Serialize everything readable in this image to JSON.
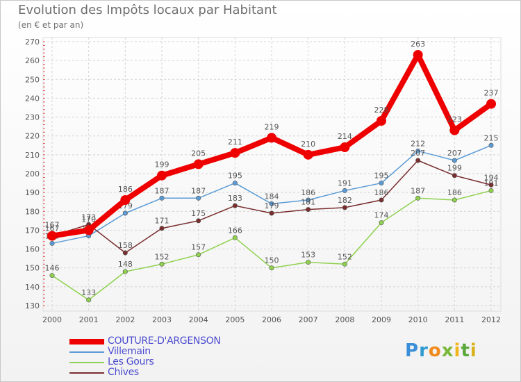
{
  "title": "Evolution des Impôts locaux par Habitant",
  "subtitle": "(en € et par an)",
  "logo_text": "Proxiti",
  "chart_data": {
    "type": "line",
    "title": "Evolution des Impôts locaux par Habitant",
    "ylabel": "(en € et par an)",
    "xlabel": "",
    "x": [
      2000,
      2001,
      2002,
      2003,
      2004,
      2005,
      2006,
      2007,
      2008,
      2009,
      2010,
      2011,
      2012
    ],
    "ylim": [
      130,
      270
    ],
    "yticks": [
      130,
      140,
      150,
      160,
      170,
      180,
      190,
      200,
      210,
      220,
      230,
      240,
      250,
      260,
      270
    ],
    "grid": true,
    "legend_position": "bottom-left",
    "series": [
      {
        "name": "Villemain",
        "color": "#5b9bd5",
        "values": [
          163,
          167,
          179,
          187,
          187,
          195,
          184,
          186,
          191,
          195,
          212,
          207,
          215
        ]
      },
      {
        "name": "Les Gours",
        "color": "#8fd14f",
        "values": [
          146,
          133,
          148,
          152,
          157,
          166,
          150,
          153,
          152,
          174,
          187,
          186,
          191
        ]
      },
      {
        "name": "Chives",
        "color": "#7a2d2d",
        "values": [
          167,
          173,
          158,
          171,
          175,
          183,
          179,
          181,
          182,
          186,
          207,
          199,
          194
        ]
      },
      {
        "name": "COUTURE-D'ARGENSON",
        "color": "#ee0000",
        "values": [
          167,
          170,
          186,
          199,
          205,
          211,
          219,
          210,
          214,
          228,
          263,
          223,
          237
        ]
      }
    ],
    "legend_order": [
      "COUTURE-D'ARGENSON",
      "Villemain",
      "Les Gours",
      "Chives"
    ]
  }
}
